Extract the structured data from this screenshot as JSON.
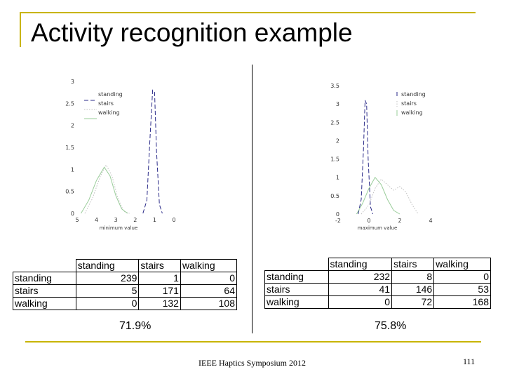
{
  "slide": {
    "title": "Activity recognition example",
    "footer": "IEEE Haptics Symposium 2012",
    "page_number": "111"
  },
  "chart_data": [
    {
      "type": "line",
      "xlabel": "minimum value",
      "xticks": [
        "5",
        "4",
        "3",
        "2",
        "1",
        "0"
      ],
      "xlim": [
        -5,
        0
      ],
      "ylim": [
        0,
        3
      ],
      "yticks": [
        "0",
        "0.5",
        "1",
        "1.5",
        "2",
        "2.5",
        "3"
      ],
      "legend": [
        "standing",
        "stairs",
        "walking"
      ],
      "legend_position": "top-left",
      "series": [
        {
          "name": "standing",
          "color": "#2a2a88",
          "style": "dashed",
          "x": [
            -1.6,
            -1.4,
            -1.25,
            -1.1,
            -1.0,
            -0.9,
            -0.75,
            -0.6
          ],
          "y": [
            0,
            0.3,
            1.6,
            2.8,
            2.75,
            1.4,
            0.2,
            0
          ]
        },
        {
          "name": "stairs",
          "color": "#c0c0c0",
          "style": "dotted",
          "x": [
            -4.6,
            -4.2,
            -3.8,
            -3.5,
            -3.2,
            -2.9,
            -2.6,
            -2.3
          ],
          "y": [
            0,
            0.35,
            0.85,
            1.1,
            0.85,
            0.35,
            0.05,
            0
          ]
        },
        {
          "name": "walking",
          "color": "#9acd9a",
          "style": "solid",
          "x": [
            -4.8,
            -4.4,
            -4.0,
            -3.6,
            -3.3,
            -3.0,
            -2.7,
            -2.4
          ],
          "y": [
            0,
            0.3,
            0.75,
            1.05,
            0.85,
            0.4,
            0.1,
            0
          ]
        }
      ],
      "confusion_matrix": {
        "columns": [
          "standing",
          "stairs",
          "walking"
        ],
        "rows": [
          {
            "label": "standing",
            "values": [
              "239",
              "1",
              "0"
            ]
          },
          {
            "label": "stairs",
            "values": [
              "5",
              "171",
              "64"
            ]
          },
          {
            "label": "walking",
            "values": [
              "0",
              "132",
              "108"
            ]
          }
        ]
      },
      "accuracy": "71.9%"
    },
    {
      "type": "line",
      "xlabel": "maximum value",
      "xticks": [
        "-2",
        "0",
        "2",
        "4"
      ],
      "xlim": [
        -2,
        4
      ],
      "ylim": [
        0,
        3.5
      ],
      "yticks": [
        "0",
        "0.5",
        "1",
        "1.5",
        "2",
        "2.5",
        "3",
        "3.5"
      ],
      "legend": [
        "standing",
        "stairs",
        "walking"
      ],
      "legend_position": "top-right",
      "series": [
        {
          "name": "standing",
          "color": "#2a2a88",
          "style": "dashed",
          "x": [
            -0.7,
            -0.5,
            -0.35,
            -0.25,
            -0.15,
            -0.05,
            0.1,
            0.25
          ],
          "y": [
            0,
            0.4,
            1.8,
            3.1,
            3.0,
            1.5,
            0.2,
            0
          ]
        },
        {
          "name": "stairs",
          "color": "#c0c0c0",
          "style": "dotted",
          "x": [
            -0.5,
            0.0,
            0.4,
            0.8,
            1.2,
            1.6,
            2.0,
            2.4,
            2.8,
            3.2
          ],
          "y": [
            0,
            0.25,
            0.7,
            0.95,
            0.8,
            0.65,
            0.75,
            0.6,
            0.25,
            0
          ]
        },
        {
          "name": "walking",
          "color": "#9acd9a",
          "style": "solid",
          "x": [
            -0.8,
            -0.4,
            0.0,
            0.4,
            0.8,
            1.2,
            1.6,
            2.0
          ],
          "y": [
            0,
            0.3,
            0.7,
            1.0,
            0.8,
            0.4,
            0.1,
            0
          ]
        }
      ],
      "confusion_matrix": {
        "columns": [
          "standing",
          "stairs",
          "walking"
        ],
        "rows": [
          {
            "label": "standing",
            "values": [
              "232",
              "8",
              "0"
            ]
          },
          {
            "label": "stairs",
            "values": [
              "41",
              "146",
              "53"
            ]
          },
          {
            "label": "walking",
            "values": [
              "0",
              "72",
              "168"
            ]
          }
        ]
      },
      "accuracy": "75.8%"
    }
  ]
}
